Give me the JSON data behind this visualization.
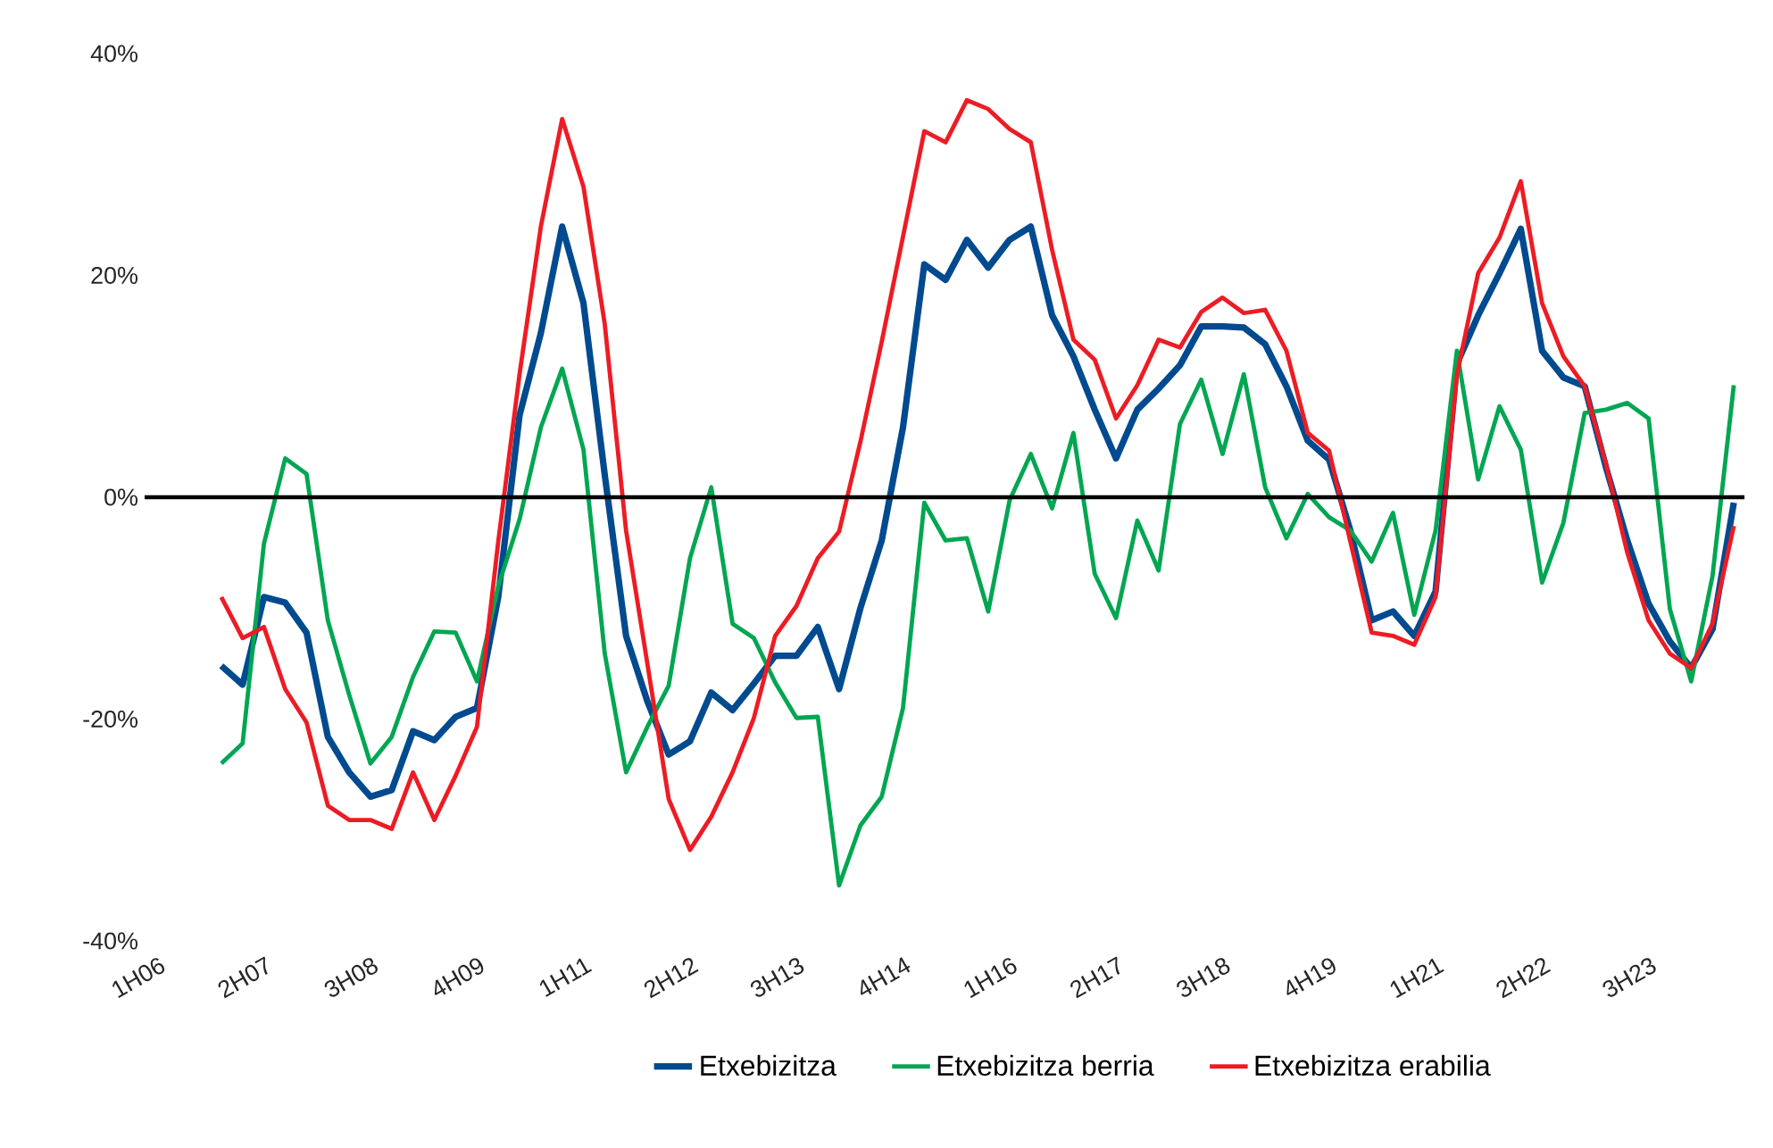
{
  "chart_data": {
    "type": "line",
    "categories": [
      "1H06",
      null,
      null,
      null,
      null,
      "2H07",
      null,
      null,
      null,
      null,
      "3H08",
      null,
      null,
      null,
      null,
      "4H09",
      null,
      null,
      null,
      null,
      "1H11",
      null,
      null,
      null,
      null,
      "2H12",
      null,
      null,
      null,
      null,
      "3H13",
      null,
      null,
      null,
      null,
      "4H14",
      null,
      null,
      null,
      null,
      "1H16",
      null,
      null,
      null,
      null,
      "2H17",
      null,
      null,
      null,
      null,
      "3H18",
      null,
      null,
      null,
      null,
      "4H19",
      null,
      null,
      null,
      null,
      "1H21",
      null,
      null,
      null,
      null,
      "2H22",
      null,
      null,
      null,
      null,
      "3H23",
      null,
      null,
      null,
      null
    ],
    "series": [
      {
        "name": "Etxebizitza",
        "color": "#004a8f",
        "values": [
          null,
          null,
          null,
          -15.2,
          -16.9,
          -9.0,
          -9.5,
          -12.2,
          -21.6,
          -24.8,
          -27.0,
          -26.4,
          -21.1,
          -21.9,
          -19.8,
          -19.0,
          -9,
          7.4,
          14.8,
          24.4,
          17.5,
          2,
          -12.5,
          -18.4,
          -23.2,
          -22.0,
          -17.6,
          -19.2,
          -16.8,
          -14.3,
          -14.3,
          -11.7,
          -17.3,
          -10,
          -3.9,
          6.3,
          21.0,
          19.6,
          23.2,
          20.7,
          23.2,
          24.4,
          16.4,
          12.7,
          7.9,
          3.5,
          7.9,
          9.8,
          11.9,
          15.4,
          15.4,
          15.3,
          13.8,
          10.0,
          5.1,
          3.4,
          -3,
          -11.1,
          -10.3,
          -12.5,
          -8.5,
          12,
          16.4,
          20.2,
          24.2,
          13.2,
          10.8,
          10.0,
          2.7,
          -3.9,
          -9.6,
          -13.0,
          -15.4,
          -11.9,
          -0.5
        ]
      },
      {
        "name": "Etxebizitza berria",
        "color": "#00a651",
        "values": [
          null,
          null,
          null,
          -24.0,
          -22.2,
          -4.2,
          3.5,
          2.1,
          -11.1,
          -17.8,
          -24.0,
          -21.6,
          -16.2,
          -12.1,
          -12.2,
          -16.6,
          -8,
          -2,
          6.3,
          11.6,
          4.3,
          -14.1,
          -24.8,
          -20.7,
          -17.0,
          -5.5,
          0.9,
          -11.4,
          -12.7,
          -16.7,
          -19.9,
          -19.8,
          -35.0,
          -29.6,
          -27.0,
          -19.0,
          -0.5,
          -3.9,
          -3.7,
          -10.3,
          -0.3,
          3.9,
          -1,
          5.8,
          -6.9,
          -10.9,
          -2.1,
          -6.6,
          6.6,
          10.6,
          3.9,
          11.1,
          0.9,
          -3.7,
          0.3,
          -1.8,
          -3,
          -5.8,
          -1.4,
          -10.6,
          -3,
          13.2,
          1.6,
          8.2,
          4.3,
          -7.7,
          -2.3,
          7.6,
          7.9,
          8.5,
          7.1,
          -10.1,
          -16.6,
          -7.1,
          10.1
        ]
      },
      {
        "name": "Etxebizitza erabilia",
        "color": "#ed1c24",
        "values": [
          null,
          null,
          null,
          -9.0,
          -12.7,
          -11.7,
          -17.3,
          -20.3,
          -27.8,
          -29.1,
          -29.1,
          -29.9,
          -24.8,
          -29.1,
          -25.1,
          -20.7,
          -4,
          11.1,
          24.4,
          34.1,
          28.0,
          15.6,
          -3,
          -15,
          -27.2,
          -31.8,
          -28.8,
          -24.8,
          -19.9,
          -12.5,
          -9.8,
          -5.5,
          -3.1,
          5,
          14,
          23.5,
          33.0,
          32.0,
          35.8,
          35.0,
          33.2,
          32.0,
          22.3,
          14.2,
          12.4,
          7.1,
          10.1,
          14.2,
          13.5,
          16.7,
          18.0,
          16.6,
          16.9,
          13.2,
          5.8,
          4.2,
          -4,
          -12.2,
          -12.5,
          -13.3,
          -9.0,
          11,
          20.2,
          23.4,
          28.5,
          17.5,
          12.7,
          10.0,
          3,
          -5.0,
          -11.1,
          -14.1,
          -15.4,
          -11.4,
          -2.6
        ]
      }
    ],
    "ylim": [
      -40,
      40
    ],
    "yticks": [
      {
        "value": -40,
        "label": "-40%"
      },
      {
        "value": -20,
        "label": "-20%"
      },
      {
        "value": 0,
        "label": "0%"
      },
      {
        "value": 20,
        "label": "20%"
      },
      {
        "value": 40,
        "label": "40%"
      }
    ],
    "ref_lines": [
      {
        "axis": "y",
        "value": 0,
        "color": "#000000"
      }
    ],
    "legend": "bottom",
    "grid": false,
    "marker": "none",
    "line_style": "solid"
  }
}
